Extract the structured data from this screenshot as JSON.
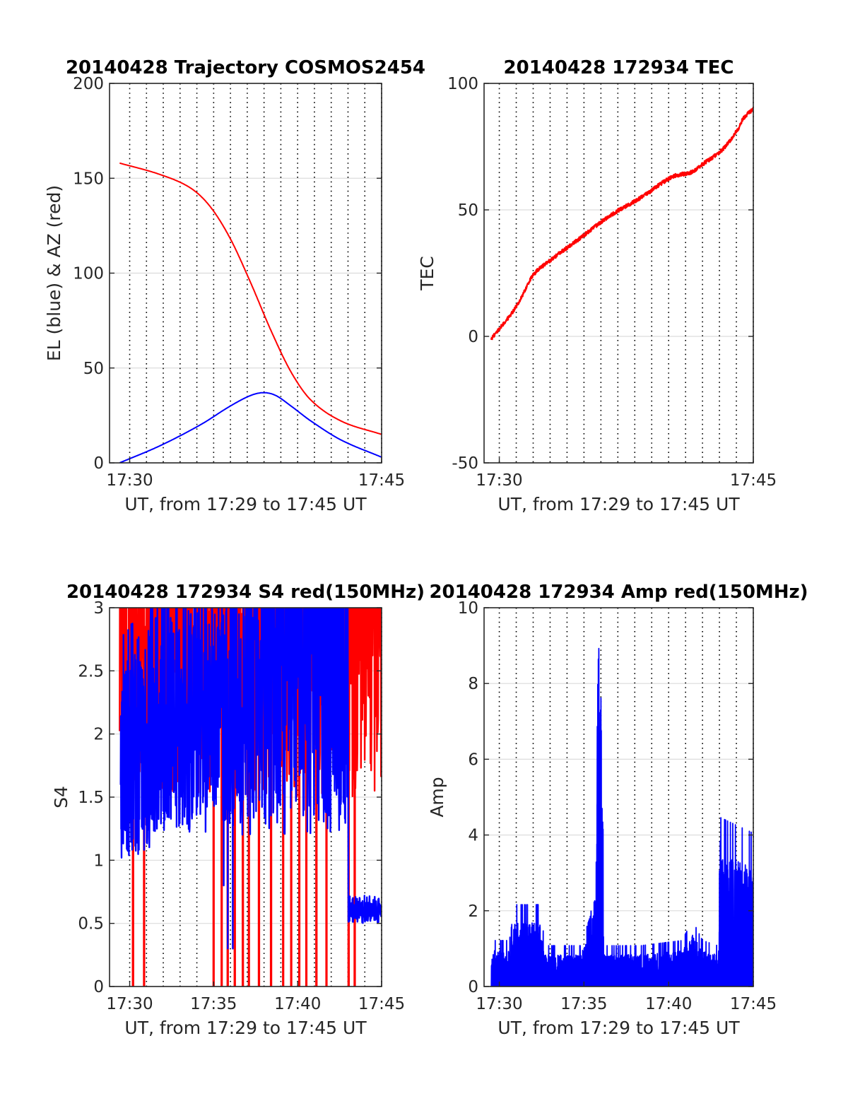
{
  "figure": {
    "background": "#ffffff",
    "grid_color": "#dcdcdc",
    "vline_color": "#000000"
  },
  "chart_data": [
    {
      "type": "line",
      "title": "20140428 Trajectory COSMOS2454",
      "xlabel": "UT, from 17:29 to 17:45 UT",
      "ylabel": "EL (blue) & AZ (red)",
      "xlim": [
        17.48,
        17.75
      ],
      "ylim": [
        0,
        200
      ],
      "xticks": [
        {
          "v": 17.5,
          "label": "17:30"
        },
        {
          "v": 17.75,
          "label": "17:45"
        }
      ],
      "yticks": [
        {
          "v": 0,
          "label": "0"
        },
        {
          "v": 50,
          "label": "50"
        },
        {
          "v": 100,
          "label": "100"
        },
        {
          "v": 150,
          "label": "150"
        },
        {
          "v": 200,
          "label": "200"
        }
      ],
      "grid": true,
      "vlines_minutes": [
        30,
        31,
        32,
        33,
        34,
        35,
        36,
        37,
        38,
        39,
        40,
        41,
        42,
        43,
        44,
        45
      ],
      "series": [
        {
          "name": "EL",
          "color": "#0000ff",
          "x": [
            17.49,
            17.53,
            17.57,
            17.6,
            17.62,
            17.633,
            17.645,
            17.66,
            17.68,
            17.71,
            17.75
          ],
          "y": [
            0,
            9,
            20,
            30,
            35.5,
            37,
            35.5,
            30,
            22,
            12,
            3
          ]
        },
        {
          "name": "AZ",
          "color": "#ff0000",
          "x": [
            17.49,
            17.53,
            17.56,
            17.58,
            17.6,
            17.62,
            17.64,
            17.66,
            17.68,
            17.71,
            17.75
          ],
          "y": [
            158,
            152,
            145,
            135,
            118,
            95,
            70,
            48,
            33,
            22,
            15
          ]
        }
      ]
    },
    {
      "type": "line",
      "title": "20140428 172934 TEC",
      "xlabel": "UT, from 17:29 to 17:45 UT",
      "ylabel": "TEC",
      "xlim": [
        17.485,
        17.75
      ],
      "ylim": [
        -50,
        100
      ],
      "xticks": [
        {
          "v": 17.5,
          "label": "17:30"
        },
        {
          "v": 17.75,
          "label": "17:45"
        }
      ],
      "yticks": [
        {
          "v": -50,
          "label": "-50"
        },
        {
          "v": 0,
          "label": "0"
        },
        {
          "v": 50,
          "label": "50"
        },
        {
          "v": 100,
          "label": "100"
        }
      ],
      "grid": true,
      "vlines_minutes": [
        30,
        31,
        32,
        33,
        34,
        35,
        36,
        37,
        38,
        39,
        40,
        41,
        42,
        43,
        44,
        45
      ],
      "series": [
        {
          "name": "TEC",
          "color": "#ff0000",
          "noise": 0.8,
          "x": [
            17.492,
            17.5,
            17.51,
            17.52,
            17.533,
            17.55,
            17.58,
            17.61,
            17.64,
            17.67,
            17.69,
            17.7,
            17.72,
            17.735,
            17.74,
            17.75
          ],
          "y": [
            -1,
            3,
            8,
            14,
            24,
            30,
            39,
            48,
            55,
            63,
            65,
            68,
            74,
            82,
            86,
            90
          ]
        }
      ]
    },
    {
      "type": "line",
      "title": "20140428 172934 S4 red(150MHz)",
      "xlabel": "UT, from 17:29 to 17:45 UT",
      "ylabel": "S4",
      "xlim": [
        17.48,
        17.75
      ],
      "ylim": [
        0,
        3
      ],
      "xticks": [
        {
          "v": 17.5,
          "label": "17:30"
        },
        {
          "v": 17.5833,
          "label": "17:35"
        },
        {
          "v": 17.6667,
          "label": "17:40"
        },
        {
          "v": 17.75,
          "label": "17:45"
        }
      ],
      "yticks": [
        {
          "v": 0,
          "label": "0"
        },
        {
          "v": 0.5,
          "label": "0.5"
        },
        {
          "v": 1,
          "label": "1"
        },
        {
          "v": 1.5,
          "label": "1.5"
        },
        {
          "v": 2,
          "label": "2"
        },
        {
          "v": 2.5,
          "label": "2.5"
        },
        {
          "v": 3,
          "label": "3"
        }
      ],
      "grid": true,
      "vlines_minutes": [
        30,
        31,
        32,
        33,
        34,
        35,
        36,
        37,
        38,
        39,
        40,
        41,
        42,
        43,
        44,
        45
      ],
      "series": [
        {
          "name": "S4 red",
          "color": "#ff0000",
          "kind": "s4red",
          "x_start": 17.49,
          "x_end": 17.75,
          "spikes_down": [
            17.503,
            17.514,
            17.583,
            17.591,
            17.597,
            17.604,
            17.612,
            17.618,
            17.628,
            17.64,
            17.652,
            17.66,
            17.668,
            17.675,
            17.685,
            17.695,
            17.717,
            17.723
          ]
        },
        {
          "name": "S4 blue",
          "color": "#0000ff",
          "kind": "s4blue",
          "x_start": 17.491,
          "x_end": 17.75,
          "dips": [
            {
              "x": 17.597,
              "y": 0.3
            },
            {
              "x": 17.602,
              "y": 0.3
            },
            {
              "x": 17.593,
              "y": 0.8
            }
          ]
        }
      ]
    },
    {
      "type": "line",
      "title": "20140428 172934 Amp red(150MHz)",
      "xlabel": "UT, from 17:29 to 17:45 UT",
      "ylabel": "Amp",
      "xlim": [
        17.485,
        17.75
      ],
      "ylim": [
        0,
        10
      ],
      "xticks": [
        {
          "v": 17.5,
          "label": "17:30"
        },
        {
          "v": 17.5833,
          "label": "17:35"
        },
        {
          "v": 17.6667,
          "label": "17:40"
        },
        {
          "v": 17.75,
          "label": "17:45"
        }
      ],
      "yticks": [
        {
          "v": 0,
          "label": "0"
        },
        {
          "v": 2,
          "label": "2"
        },
        {
          "v": 4,
          "label": "4"
        },
        {
          "v": 6,
          "label": "6"
        },
        {
          "v": 8,
          "label": "8"
        },
        {
          "v": 10,
          "label": "10"
        }
      ],
      "grid": true,
      "vlines_minutes": [
        30,
        31,
        32,
        33,
        34,
        35,
        36,
        37,
        38,
        39,
        40,
        41,
        42,
        43,
        44,
        45
      ],
      "series": [
        {
          "name": "Amp",
          "color": "#0000ff",
          "kind": "amp",
          "x_start": 17.492,
          "x_end": 17.75,
          "envelope_x": [
            17.492,
            17.51,
            17.515,
            17.54,
            17.545,
            17.58,
            17.59,
            17.595,
            17.597,
            17.6,
            17.603,
            17.64,
            17.68,
            17.69,
            17.7,
            17.715,
            17.718,
            17.75
          ],
          "envelope_y": [
            0.9,
            0.9,
            1.6,
            1.6,
            0.8,
            0.8,
            1.4,
            2.5,
            8.8,
            8.8,
            0.8,
            0.8,
            0.9,
            1.3,
            0.9,
            0.8,
            3.3,
            3.0
          ]
        }
      ]
    }
  ]
}
